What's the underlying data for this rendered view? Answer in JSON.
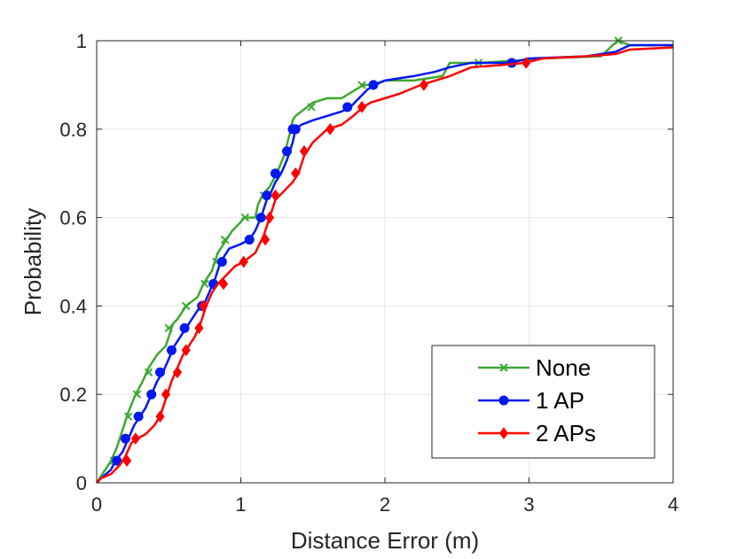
{
  "chart_data": {
    "type": "line",
    "title": "",
    "xlabel": "Distance Error (m)",
    "ylabel": "Probability",
    "xlim": [
      0,
      4
    ],
    "ylim": [
      0,
      1
    ],
    "xticks": [
      0,
      1,
      2,
      3,
      4
    ],
    "xtick_labels": [
      "0",
      "1",
      "2",
      "3",
      "4"
    ],
    "yticks": [
      0,
      0.2,
      0.4,
      0.6,
      0.8,
      1
    ],
    "ytick_labels": [
      "0",
      "0.2",
      "0.4",
      "0.6",
      "0.8",
      "1"
    ],
    "grid": true,
    "legend_position": "bottom-right",
    "series": [
      {
        "name": "None",
        "color": "#3ea832",
        "marker": "x",
        "x": [
          0.02,
          0.06,
          0.1,
          0.14,
          0.18,
          0.22,
          0.27,
          0.32,
          0.36,
          0.42,
          0.48,
          0.5,
          0.53,
          0.56,
          0.6,
          0.62,
          0.66,
          0.7,
          0.74,
          0.8,
          0.84,
          0.9,
          0.94,
          1.0,
          1.02,
          1.1,
          1.12,
          1.15,
          1.2,
          1.25,
          1.3,
          1.34,
          1.36,
          1.38,
          1.42,
          1.5,
          1.6,
          1.7,
          1.8,
          1.85,
          1.9,
          2.0,
          2.2,
          2.4,
          2.45,
          2.65,
          2.9,
          3.1,
          3.5,
          3.58,
          3.62,
          3.7,
          4.0
        ],
        "y": [
          0.01,
          0.03,
          0.05,
          0.08,
          0.12,
          0.16,
          0.2,
          0.23,
          0.26,
          0.29,
          0.31,
          0.33,
          0.36,
          0.37,
          0.39,
          0.4,
          0.41,
          0.42,
          0.45,
          0.48,
          0.52,
          0.55,
          0.57,
          0.59,
          0.6,
          0.6,
          0.63,
          0.65,
          0.67,
          0.7,
          0.74,
          0.79,
          0.82,
          0.83,
          0.84,
          0.86,
          0.87,
          0.87,
          0.89,
          0.9,
          0.9,
          0.91,
          0.91,
          0.92,
          0.95,
          0.95,
          0.955,
          0.96,
          0.965,
          0.99,
          1.0,
          0.99,
          0.99
        ],
        "markers_x": [
          0.12,
          0.22,
          0.28,
          0.36,
          0.5,
          0.62,
          0.75,
          0.83,
          0.89,
          1.03,
          1.16,
          1.49,
          1.84,
          2.65,
          3.62
        ],
        "markers_y": [
          0.05,
          0.15,
          0.2,
          0.25,
          0.35,
          0.4,
          0.45,
          0.5,
          0.55,
          0.6,
          0.65,
          0.85,
          0.9,
          0.95,
          1.0
        ]
      },
      {
        "name": "1 AP",
        "color": "#0018f2",
        "marker": "o",
        "x": [
          0.03,
          0.1,
          0.13,
          0.18,
          0.22,
          0.26,
          0.3,
          0.34,
          0.38,
          0.42,
          0.46,
          0.5,
          0.54,
          0.58,
          0.62,
          0.66,
          0.7,
          0.74,
          0.78,
          0.82,
          0.86,
          0.92,
          1.0,
          1.06,
          1.1,
          1.14,
          1.18,
          1.2,
          1.24,
          1.28,
          1.32,
          1.36,
          1.38,
          1.42,
          1.5,
          1.6,
          1.7,
          1.76,
          1.82,
          1.88,
          1.93,
          2.0,
          2.2,
          2.35,
          2.45,
          2.6,
          2.87,
          3.0,
          3.4,
          3.6,
          3.7,
          4.0
        ],
        "y": [
          0.01,
          0.03,
          0.05,
          0.07,
          0.1,
          0.13,
          0.15,
          0.17,
          0.2,
          0.23,
          0.25,
          0.28,
          0.31,
          0.33,
          0.35,
          0.37,
          0.39,
          0.4,
          0.43,
          0.46,
          0.5,
          0.53,
          0.54,
          0.55,
          0.57,
          0.6,
          0.64,
          0.65,
          0.68,
          0.7,
          0.73,
          0.77,
          0.8,
          0.81,
          0.82,
          0.83,
          0.84,
          0.85,
          0.87,
          0.89,
          0.9,
          0.91,
          0.92,
          0.93,
          0.94,
          0.95,
          0.95,
          0.96,
          0.965,
          0.975,
          0.99,
          0.99
        ],
        "markers_x": [
          0.14,
          0.2,
          0.29,
          0.38,
          0.44,
          0.52,
          0.61,
          0.73,
          0.81,
          0.87,
          1.06,
          1.14,
          1.18,
          1.24,
          1.32,
          1.36,
          1.38,
          1.74,
          1.92,
          2.88
        ],
        "markers_y": [
          0.05,
          0.1,
          0.15,
          0.2,
          0.25,
          0.3,
          0.35,
          0.4,
          0.45,
          0.5,
          0.55,
          0.6,
          0.65,
          0.7,
          0.75,
          0.8,
          0.8,
          0.85,
          0.9,
          0.95
        ]
      },
      {
        "name": "2 APs",
        "color": "#ff0000",
        "marker": "d",
        "x": [
          0.03,
          0.1,
          0.16,
          0.2,
          0.24,
          0.28,
          0.34,
          0.4,
          0.44,
          0.48,
          0.52,
          0.56,
          0.6,
          0.64,
          0.68,
          0.72,
          0.76,
          0.8,
          0.84,
          0.9,
          0.96,
          1.02,
          1.1,
          1.16,
          1.2,
          1.24,
          1.3,
          1.36,
          1.4,
          1.44,
          1.5,
          1.6,
          1.7,
          1.78,
          1.85,
          1.9,
          2.0,
          2.1,
          2.25,
          2.35,
          2.45,
          2.6,
          2.8,
          2.97,
          3.1,
          3.4,
          3.6,
          3.7,
          4.0
        ],
        "y": [
          0.01,
          0.02,
          0.04,
          0.06,
          0.09,
          0.1,
          0.11,
          0.13,
          0.15,
          0.19,
          0.23,
          0.26,
          0.29,
          0.31,
          0.33,
          0.36,
          0.4,
          0.43,
          0.45,
          0.47,
          0.49,
          0.5,
          0.52,
          0.56,
          0.6,
          0.64,
          0.66,
          0.68,
          0.7,
          0.74,
          0.77,
          0.8,
          0.81,
          0.83,
          0.85,
          0.86,
          0.87,
          0.88,
          0.9,
          0.91,
          0.92,
          0.94,
          0.945,
          0.95,
          0.96,
          0.965,
          0.97,
          0.98,
          0.985
        ],
        "markers_x": [
          0.21,
          0.27,
          0.44,
          0.48,
          0.56,
          0.62,
          0.71,
          0.74,
          0.88,
          1.02,
          1.17,
          1.2,
          1.24,
          1.38,
          1.44,
          1.62,
          1.84,
          2.27,
          2.98
        ],
        "markers_y": [
          0.05,
          0.1,
          0.15,
          0.2,
          0.25,
          0.3,
          0.35,
          0.4,
          0.45,
          0.5,
          0.55,
          0.6,
          0.65,
          0.7,
          0.75,
          0.8,
          0.85,
          0.9,
          0.95
        ]
      }
    ]
  }
}
